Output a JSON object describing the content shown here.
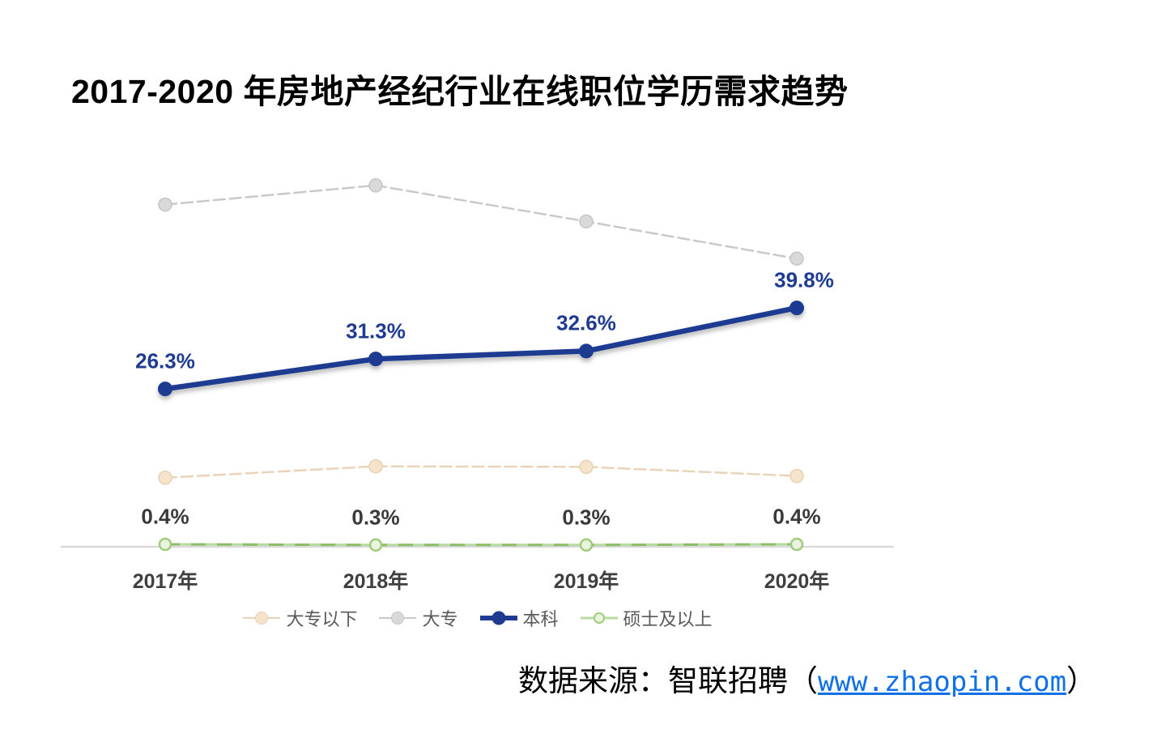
{
  "title": "2017-2020 年房地产经纪行业在线职位学历需求趋势",
  "source": {
    "prefix": "数据来源：智联招聘（",
    "link": "www.zhaopin.com",
    "suffix": "）",
    "link_color": "#1070E8"
  },
  "chart_data": {
    "type": "line",
    "title": "2017-2020 年房地产经纪行业在线职位学历需求趋势",
    "categories": [
      "2017年",
      "2018年",
      "2019年",
      "2020年"
    ],
    "unit": "%",
    "ylim": [
      0,
      65
    ],
    "grid": false,
    "legend_position": "bottom",
    "axis_color": "#D9D9D9",
    "x_tick_color": "#3F3F3F",
    "legend_text_color": "#595959",
    "series": [
      {
        "id": "below-associate",
        "name": "大专以下",
        "values": [
          11.5,
          13.4,
          13.3,
          11.8
        ],
        "estimated": true,
        "show_labels": false,
        "line": {
          "color": "#E9D4B8",
          "width": 2.5,
          "dash": "14 6"
        },
        "marker": {
          "r": 8,
          "fill": "#F6E3CC",
          "stroke": "#E9D0AE",
          "stroke_width": 1.5
        }
      },
      {
        "id": "associate",
        "name": "大专",
        "values": [
          57.0,
          60.2,
          54.2,
          48.0
        ],
        "estimated": true,
        "show_labels": false,
        "line": {
          "color": "#C9C9C9",
          "width": 2.5,
          "dash": "14 6"
        },
        "marker": {
          "r": 8,
          "fill": "#D9D9D9",
          "stroke": "#C4C4C4",
          "stroke_width": 1.5
        }
      },
      {
        "id": "bachelor",
        "name": "本科",
        "values": [
          26.3,
          31.3,
          32.6,
          39.8
        ],
        "estimated": false,
        "show_labels": true,
        "labels": [
          "26.3%",
          "31.3%",
          "32.6%",
          "39.8%"
        ],
        "label_color": "#1F3B91",
        "label_dx": [
          0,
          0,
          0,
          9
        ],
        "thick": true,
        "line": {
          "color": "#1F3B91",
          "width": 6.5
        },
        "marker": {
          "r": 8.5,
          "fill": "#1F3B91",
          "stroke": "#1F3B91",
          "stroke_width": 1
        }
      },
      {
        "id": "master-above",
        "name": "硕士及以上",
        "values": [
          0.4,
          0.3,
          0.3,
          0.4
        ],
        "estimated": false,
        "show_labels": true,
        "labels": [
          "0.4%",
          "0.3%",
          "0.3%",
          "0.4%"
        ],
        "label_color": "#3A3A3A",
        "line": {
          "color": "#B7DAA0",
          "width": 3
        },
        "line_overlay": {
          "color": "#8CBD68",
          "width": 3,
          "dash": "18 14"
        },
        "marker": {
          "r": 7,
          "fill": "#EAF3E0",
          "stroke": "#9FCB7B",
          "stroke_width": 2.5
        }
      }
    ]
  }
}
